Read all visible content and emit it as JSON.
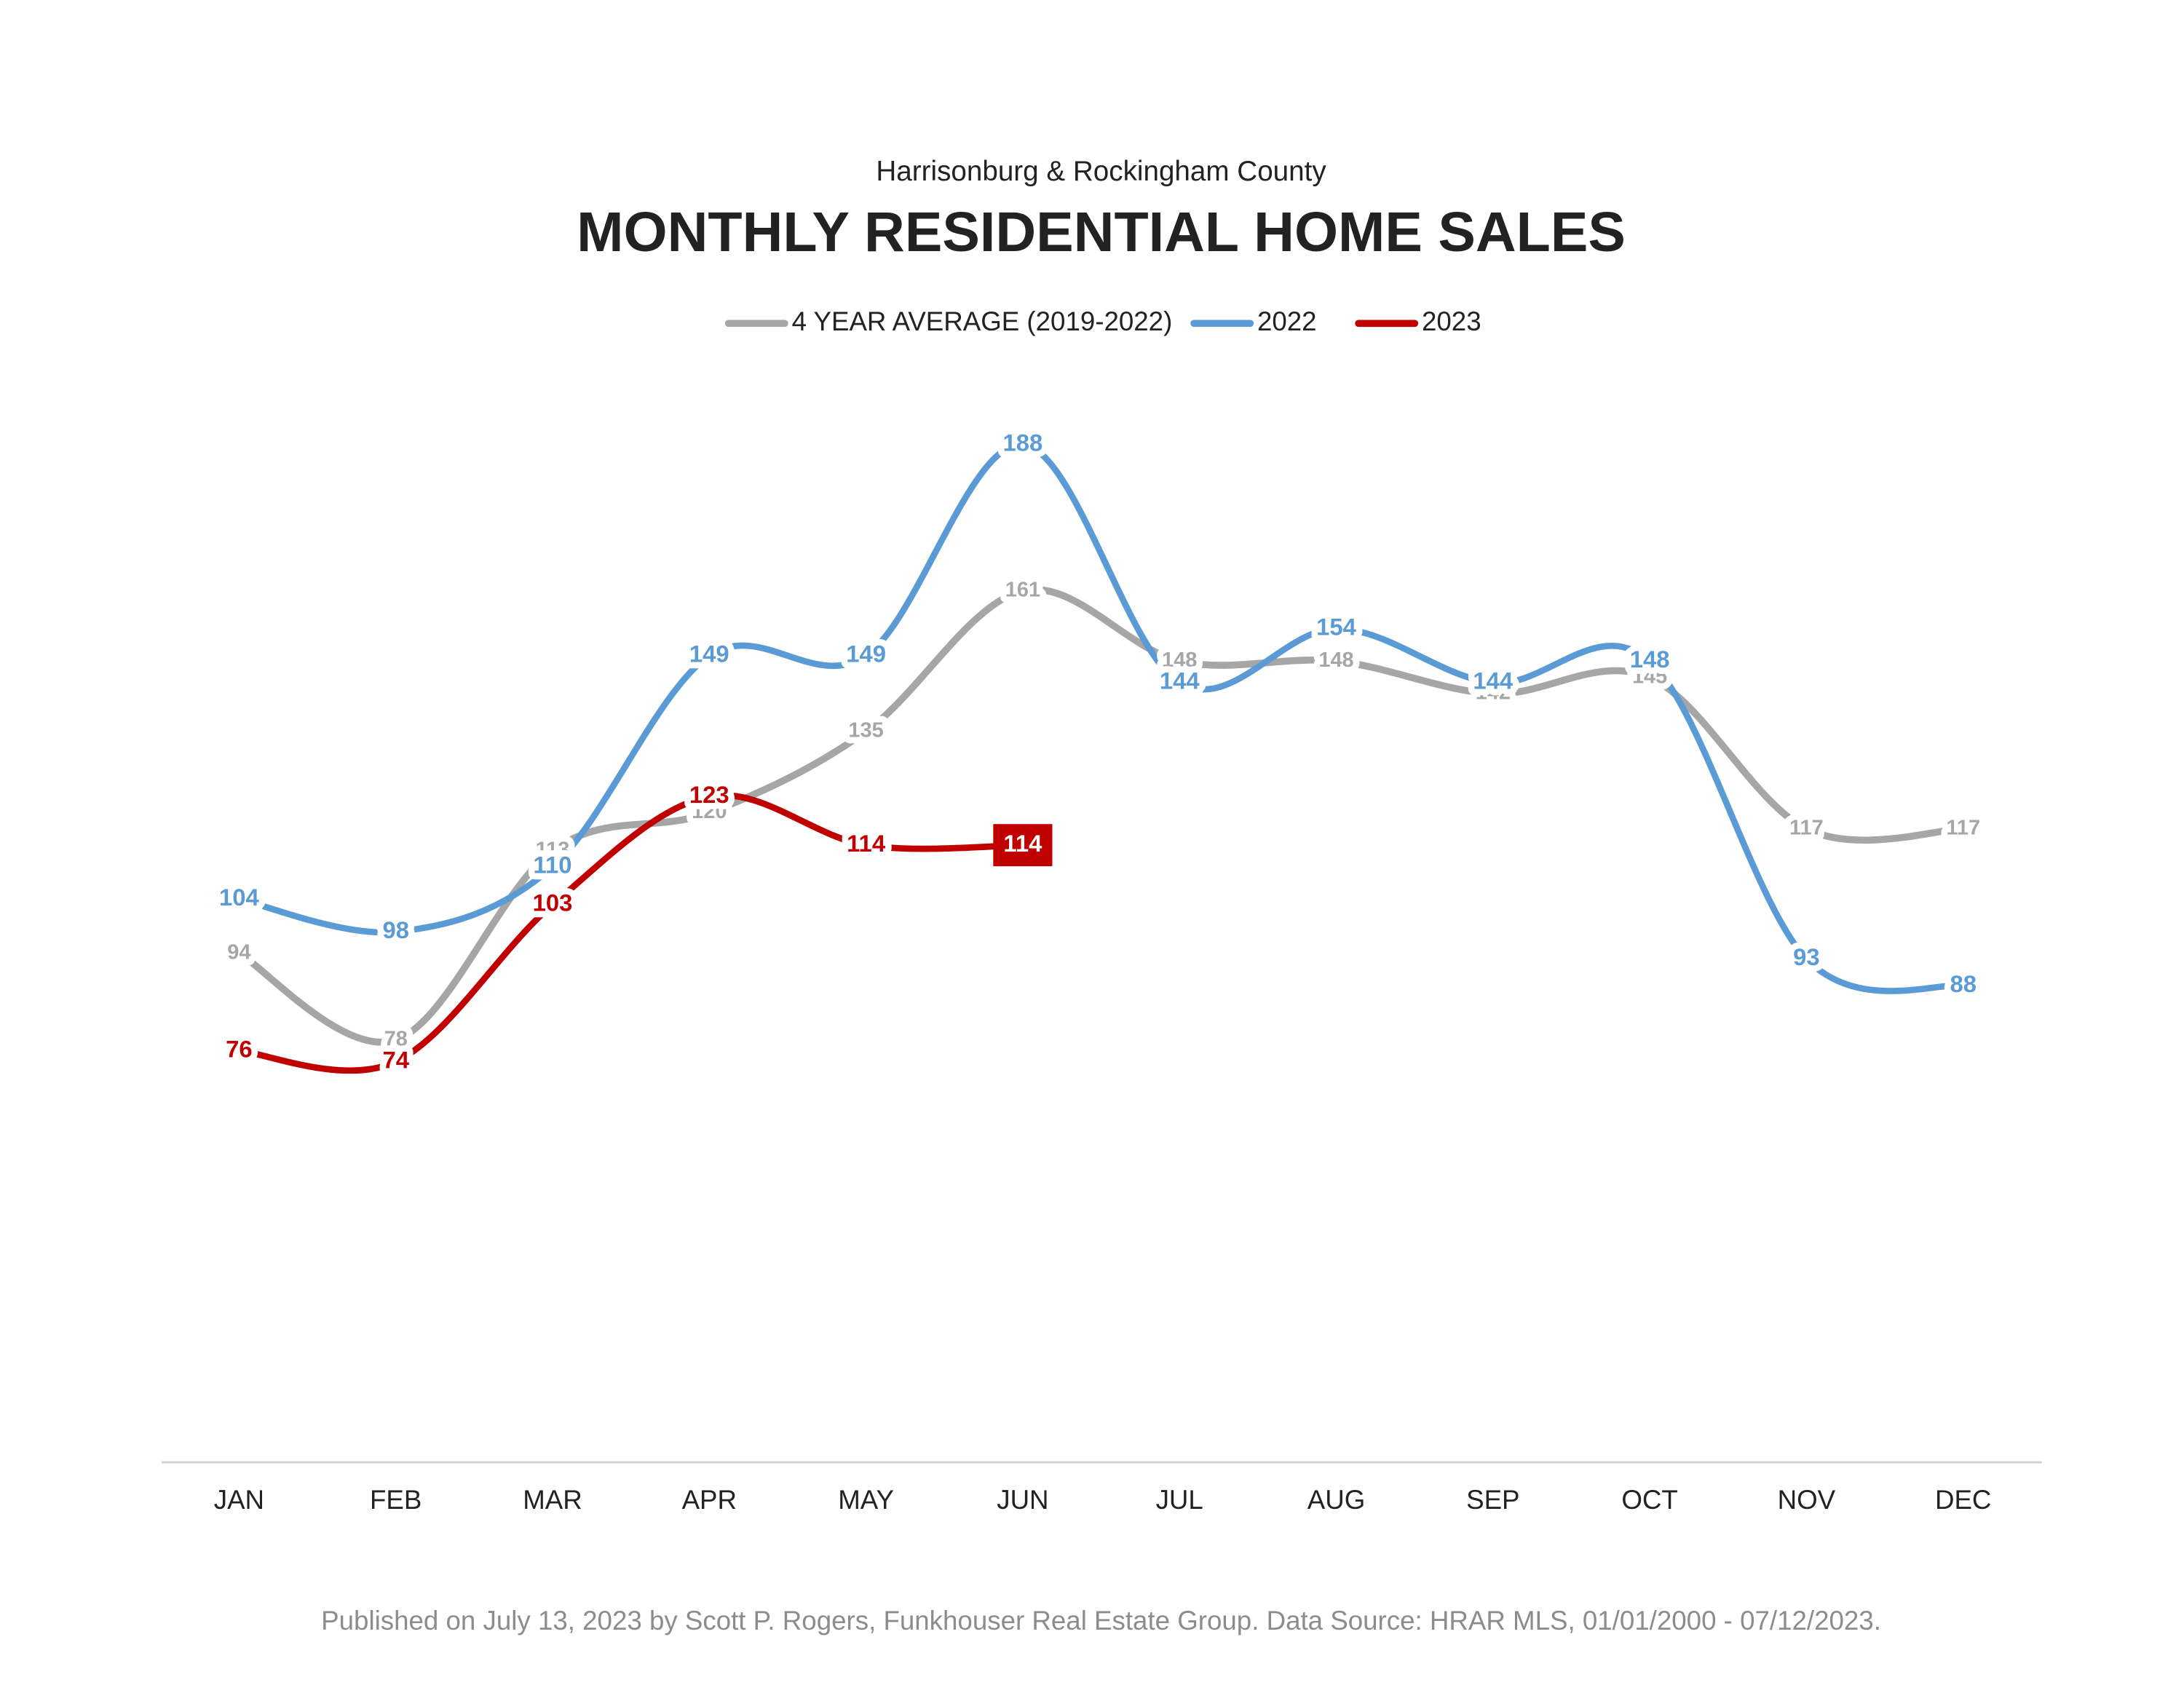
{
  "chart_data": {
    "type": "line",
    "subtitle": "Harrisonburg & Rockingham County",
    "title": "MONTHLY RESIDENTIAL HOME SALES",
    "categories": [
      "JAN",
      "FEB",
      "MAR",
      "APR",
      "MAY",
      "JUN",
      "JUL",
      "AUG",
      "SEP",
      "OCT",
      "NOV",
      "DEC"
    ],
    "series": [
      {
        "name": "4 YEAR AVERAGE (2019-2022)",
        "color": "#a6a6a6",
        "values": [
          94,
          78,
          113,
          120,
          135,
          161,
          148,
          148,
          142,
          145,
          117,
          117
        ]
      },
      {
        "name": "2022",
        "color": "#5b9bd5",
        "values": [
          104,
          98,
          110,
          149,
          149,
          188,
          144,
          154,
          144,
          148,
          93,
          88
        ]
      },
      {
        "name": "2023",
        "color": "#c00000",
        "values": [
          76,
          74,
          103,
          123,
          114,
          114,
          null,
          null,
          null,
          null,
          null,
          null
        ]
      }
    ],
    "ylim": [
      0,
      200
    ],
    "footnote": "Published on July 13, 2023 by Scott P. Rogers, Funkhouser Real Estate Group. Data Source: HRAR MLS, 01/01/2000 - 07/12/2023."
  }
}
